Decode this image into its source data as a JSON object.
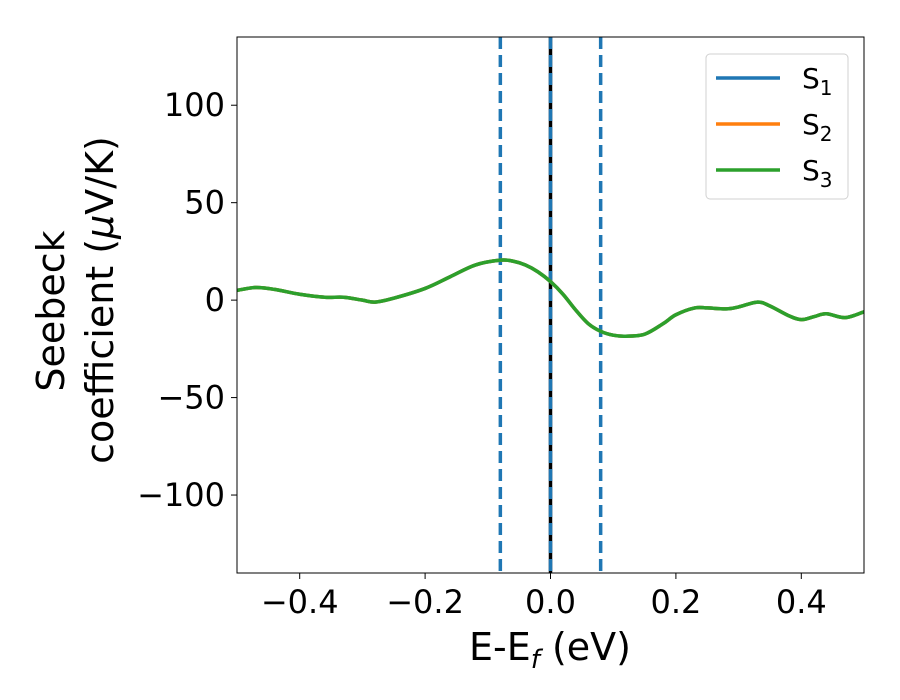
{
  "chart_data": {
    "type": "line",
    "xlabel": {
      "base": "E-E",
      "sub": "f",
      "rest": " (eV)"
    },
    "ylabel": {
      "line1": "Seebeck",
      "line2": "coefficient  (",
      "mu": "μ",
      "line2_end": "V/K)"
    },
    "xlim": [
      -0.5,
      0.5
    ],
    "ylim": [
      -140,
      135
    ],
    "xticks": [
      {
        "value": -0.4,
        "label": "−0.4"
      },
      {
        "value": -0.2,
        "label": "−0.2"
      },
      {
        "value": 0.0,
        "label": "0.0"
      },
      {
        "value": 0.2,
        "label": "0.2"
      },
      {
        "value": 0.4,
        "label": "0.4"
      }
    ],
    "yticks": [
      {
        "value": 100,
        "label": "100"
      },
      {
        "value": 50,
        "label": "50"
      },
      {
        "value": 0,
        "label": "0"
      },
      {
        "value": -50,
        "label": "−50"
      },
      {
        "value": -100,
        "label": "−100"
      }
    ],
    "grid": false,
    "legend": {
      "placement": "top-right"
    },
    "vlines": [
      {
        "x": -0.08,
        "style": "dashed",
        "color": "#1f77b4"
      },
      {
        "x": 0.0,
        "style": "solid",
        "color": "#000000"
      },
      {
        "x": 0.0,
        "style": "dashed",
        "color": "#1f77b4"
      },
      {
        "x": 0.08,
        "style": "dashed",
        "color": "#1f77b4"
      }
    ],
    "x": [
      -0.5,
      -0.47,
      -0.44,
      -0.4,
      -0.36,
      -0.33,
      -0.3,
      -0.28,
      -0.25,
      -0.2,
      -0.16,
      -0.12,
      -0.08,
      -0.06,
      -0.04,
      -0.02,
      0.0,
      0.02,
      0.04,
      0.06,
      0.08,
      0.1,
      0.12,
      0.15,
      0.18,
      0.2,
      0.23,
      0.25,
      0.28,
      0.3,
      0.33,
      0.35,
      0.38,
      0.4,
      0.42,
      0.44,
      0.47,
      0.5
    ],
    "series": [
      {
        "name": "S",
        "sub": "1",
        "color": "#1f77b4",
        "values": [
          5,
          6.5,
          5.5,
          3,
          1.5,
          1.5,
          0,
          -1,
          1,
          6,
          12,
          18,
          20.5,
          20,
          18,
          14.5,
          9.5,
          3,
          -5,
          -12,
          -16,
          -18,
          -18.5,
          -17.5,
          -12,
          -7.5,
          -4,
          -4,
          -4.5,
          -3.5,
          -1,
          -3,
          -8,
          -10,
          -8.5,
          -7,
          -9,
          -6
        ]
      },
      {
        "name": "S",
        "sub": "2",
        "color": "#ff7f0e",
        "values": [
          5,
          6.5,
          5.5,
          3,
          1.5,
          1.5,
          0,
          -1,
          1,
          6,
          12,
          18,
          20.5,
          20,
          18,
          14.5,
          9.5,
          3,
          -5,
          -12,
          -16,
          -18,
          -18.5,
          -17.5,
          -12,
          -7.5,
          -4,
          -4,
          -4.5,
          -3.5,
          -1,
          -3,
          -8,
          -10,
          -8.5,
          -7,
          -9,
          -6
        ]
      },
      {
        "name": "S",
        "sub": "3",
        "color": "#2ca02c",
        "values": [
          5,
          6.5,
          5.5,
          3,
          1.5,
          1.5,
          0,
          -1,
          1,
          6,
          12,
          18,
          20.5,
          20,
          18,
          14.5,
          9.5,
          3,
          -5,
          -12,
          -16,
          -18,
          -18.5,
          -17.5,
          -12,
          -7.5,
          -4,
          -4,
          -4.5,
          -3.5,
          -1,
          -3,
          -8,
          -10,
          -8.5,
          -7,
          -9,
          -6
        ]
      }
    ]
  }
}
